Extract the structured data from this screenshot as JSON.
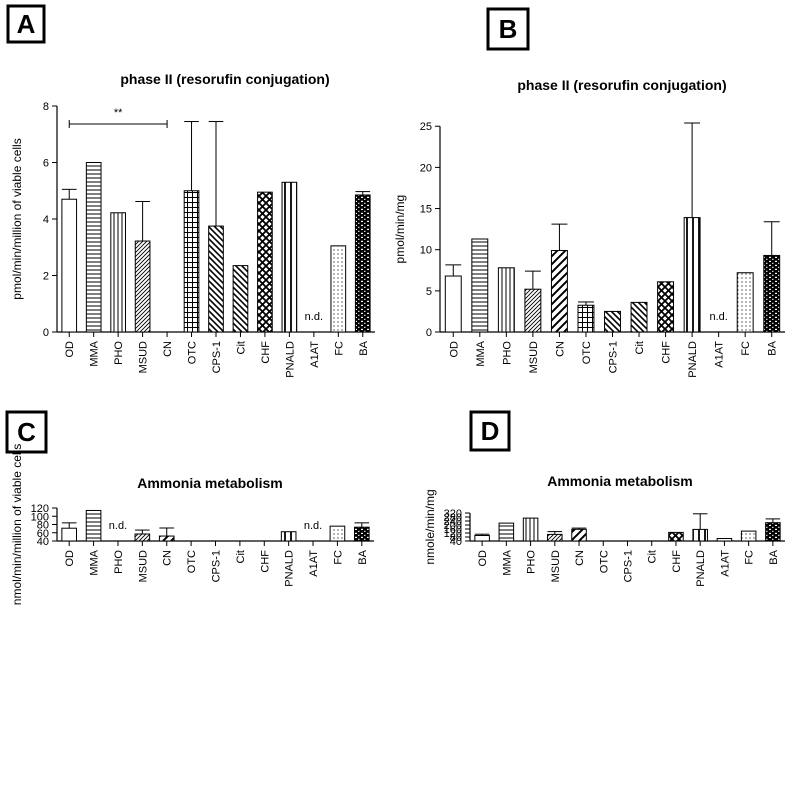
{
  "chart_data": [
    {
      "panel": "A",
      "type": "bar",
      "title": "phase II (resorufin conjugation)",
      "ylabel": "pmol/min/million of viable cells",
      "xlabel": "",
      "ylim": [
        0,
        8
      ],
      "yticks": [
        "0",
        "2",
        "4",
        "6",
        "8"
      ],
      "categories": [
        "OD",
        "MMA",
        "PHO",
        "MSUD",
        "CN",
        "OTC",
        "CPS-1",
        "Cit",
        "CHF",
        "PNALD",
        "A1AT",
        "FC",
        "BA"
      ],
      "values": [
        4.7,
        6.0,
        4.22,
        3.22,
        null,
        5.0,
        3.75,
        2.35,
        4.95,
        5.3,
        null,
        3.05,
        4.85
      ],
      "errors": [
        0.35,
        null,
        null,
        1.4,
        null,
        2.45,
        3.7,
        null,
        null,
        null,
        null,
        null,
        0.12
      ],
      "annotations": [
        {
          "text": "n.d.",
          "category": "A1AT"
        },
        {
          "text": "**",
          "from": "OD",
          "to": "CN"
        }
      ]
    },
    {
      "panel": "B",
      "type": "bar",
      "title": "phase II (resorufin conjugation)",
      "ylabel": "pmol/min/mg",
      "xlabel": "",
      "ylim": [
        0,
        26
      ],
      "yticks": [
        "0",
        "5",
        "10",
        "15",
        "20",
        "25"
      ],
      "categories": [
        "OD",
        "MMA",
        "PHO",
        "MSUD",
        "CN",
        "OTC",
        "CPS-1",
        "Cit",
        "CHF",
        "PNALD",
        "A1AT",
        "FC",
        "BA"
      ],
      "values": [
        6.8,
        11.3,
        7.8,
        5.2,
        9.9,
        3.25,
        2.5,
        3.6,
        6.1,
        13.9,
        null,
        7.2,
        9.3
      ],
      "errors": [
        1.35,
        null,
        null,
        2.2,
        3.2,
        0.4,
        null,
        null,
        null,
        11.5,
        null,
        null,
        4.1
      ],
      "annotations": [
        {
          "text": "n.d.",
          "category": "A1AT"
        }
      ]
    },
    {
      "panel": "C",
      "type": "bar",
      "title": "Ammonia metabolism",
      "ylabel": "nmol/min/million of viable cells",
      "xlabel": "",
      "ylim": [
        40,
        120
      ],
      "yticks": [
        "40",
        "60",
        "80",
        "100",
        "120"
      ],
      "categories": [
        "OD",
        "MMA",
        "PHO",
        "MSUD",
        "CN",
        "OTC",
        "CPS-1",
        "Cit",
        "CHF",
        "PNALD",
        "A1AT",
        "FC",
        "BA"
      ],
      "values": [
        71,
        114,
        null,
        57,
        52,
        null,
        null,
        null,
        null,
        62.5,
        null,
        76,
        73.5
      ],
      "errors": [
        13,
        null,
        null,
        9.5,
        19.5,
        null,
        null,
        null,
        null,
        null,
        null,
        null,
        10.5
      ],
      "annotations": [
        {
          "text": "n.d.",
          "category": "PHO"
        },
        {
          "text": "n.d.",
          "category": "A1AT"
        }
      ]
    },
    {
      "panel": "D",
      "type": "bar",
      "title": "Ammonia metabolism",
      "ylabel": "nmole/min/mg",
      "xlabel": "",
      "ylim": [
        40,
        320
      ],
      "yticks": [
        "40",
        "80",
        "120",
        "160",
        "200",
        "240",
        "280",
        "320"
      ],
      "categories": [
        "OD",
        "MMA",
        "PHO",
        "MSUD",
        "CN",
        "OTC",
        "CPS-1",
        "Cit",
        "CHF",
        "PNALD",
        "A1AT",
        "FC",
        "BA"
      ],
      "values": [
        95,
        219,
        269,
        106,
        157,
        null,
        null,
        null,
        126,
        156,
        65,
        139,
        223
      ],
      "errors": [
        13,
        null,
        null,
        28,
        12,
        null,
        null,
        null,
        null,
        156,
        null,
        null,
        38
      ],
      "annotations": []
    }
  ]
}
